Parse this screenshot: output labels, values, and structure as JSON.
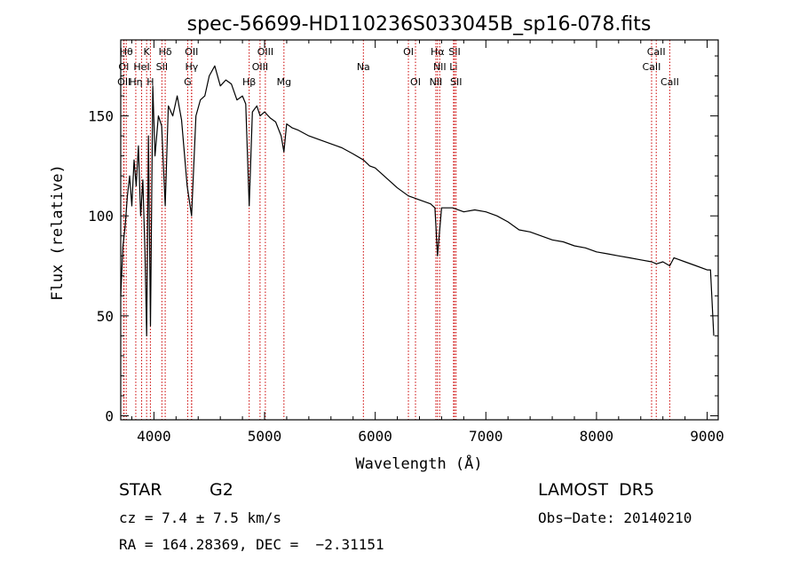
{
  "chart_data": {
    "type": "line",
    "title": "spec-56699-HD110236S033045B_sp16-078.fits",
    "xlabel": "Wavelength (Å)",
    "ylabel": "Flux (relative)",
    "xlim": [
      3700,
      9100
    ],
    "ylim": [
      -2,
      188
    ],
    "xticks": [
      4000,
      5000,
      6000,
      7000,
      8000,
      9000
    ],
    "yticks": [
      0,
      50,
      100,
      150
    ],
    "grid": false,
    "series": [
      {
        "color": "#000000",
        "x": [
          3700,
          3720,
          3740,
          3760,
          3780,
          3800,
          3820,
          3840,
          3860,
          3880,
          3900,
          3920,
          3934,
          3950,
          3969,
          3990,
          4010,
          4040,
          4070,
          4102,
          4130,
          4170,
          4210,
          4250,
          4300,
          4340,
          4380,
          4420,
          4460,
          4500,
          4550,
          4600,
          4650,
          4700,
          4750,
          4800,
          4830,
          4861,
          4890,
          4930,
          4960,
          5000,
          5050,
          5100,
          5150,
          5175,
          5200,
          5250,
          5300,
          5400,
          5500,
          5600,
          5700,
          5800,
          5893,
          5950,
          6000,
          6100,
          6200,
          6300,
          6400,
          6500,
          6540,
          6563,
          6600,
          6700,
          6800,
          6900,
          7000,
          7100,
          7200,
          7300,
          7400,
          7500,
          7600,
          7700,
          7800,
          7900,
          8000,
          8100,
          8200,
          8300,
          8400,
          8498,
          8542,
          8600,
          8662,
          8700,
          8800,
          8900,
          9000,
          9030,
          9060
        ],
        "values": [
          60,
          85,
          95,
          110,
          120,
          105,
          128,
          115,
          135,
          100,
          118,
          80,
          40,
          140,
          45,
          165,
          130,
          150,
          145,
          105,
          155,
          150,
          160,
          148,
          115,
          100,
          150,
          158,
          160,
          170,
          175,
          165,
          168,
          166,
          158,
          160,
          156,
          105,
          152,
          155,
          150,
          152,
          149,
          147,
          140,
          132,
          146,
          144,
          143,
          140,
          138,
          136,
          134,
          131,
          128,
          125,
          124,
          119,
          114,
          110,
          108,
          106,
          104,
          80,
          104,
          104,
          102,
          103,
          102,
          100,
          97,
          93,
          92,
          90,
          88,
          87,
          85,
          84,
          82,
          81,
          80,
          79,
          78,
          77,
          76,
          77,
          75,
          79,
          77,
          75,
          73,
          73,
          40
        ]
      }
    ],
    "line_markers": [
      {
        "label": "Hθ",
        "wl": 3750,
        "pos": "top"
      },
      {
        "label": "K",
        "wl": 3934,
        "pos": "top"
      },
      {
        "label": "Hδ",
        "wl": 4102,
        "pos": "top"
      },
      {
        "label": "OII",
        "wl": 4340,
        "pos": "top"
      },
      {
        "label": "OIII",
        "wl": 5007,
        "pos": "top"
      },
      {
        "label": "OI",
        "wl": 6300,
        "pos": "top"
      },
      {
        "label": "Hα",
        "wl": 6563,
        "pos": "top"
      },
      {
        "label": "SII",
        "wl": 6717,
        "pos": "top"
      },
      {
        "label": "CaII",
        "wl": 8540,
        "pos": "top"
      },
      {
        "label": "OI",
        "wl": 3727,
        "pos": "mid"
      },
      {
        "label": "HeI",
        "wl": 3889,
        "pos": "mid"
      },
      {
        "label": "SII",
        "wl": 4072,
        "pos": "mid"
      },
      {
        "label": "Hγ",
        "wl": 4341,
        "pos": "mid"
      },
      {
        "label": "OIII",
        "wl": 4959,
        "pos": "mid"
      },
      {
        "label": "Na",
        "wl": 5893,
        "pos": "mid"
      },
      {
        "label": "NII",
        "wl": 6583,
        "pos": "mid"
      },
      {
        "label": "Li",
        "wl": 6708,
        "pos": "mid"
      },
      {
        "label": "CaII",
        "wl": 8498,
        "pos": "mid"
      },
      {
        "label": "OII",
        "wl": 3730,
        "pos": "low"
      },
      {
        "label": "Hη",
        "wl": 3836,
        "pos": "low"
      },
      {
        "label": "H",
        "wl": 3968,
        "pos": "low"
      },
      {
        "label": "G",
        "wl": 4305,
        "pos": "low"
      },
      {
        "label": "Hβ",
        "wl": 4861,
        "pos": "low"
      },
      {
        "label": "Mg",
        "wl": 5175,
        "pos": "low"
      },
      {
        "label": "OI",
        "wl": 6364,
        "pos": "low"
      },
      {
        "label": "NII",
        "wl": 6548,
        "pos": "low"
      },
      {
        "label": "SII",
        "wl": 6731,
        "pos": "low"
      },
      {
        "label": "CaII",
        "wl": 8662,
        "pos": "low"
      }
    ],
    "marker_color": "#cc0000"
  },
  "info": {
    "object_class": "STAR",
    "subclass": "G2",
    "cz": "cz = 7.4 ± 7.5 km/s",
    "radec": "RA = 164.28369, DEC =  −2.31151",
    "survey": "LAMOST  DR5",
    "obs_date": "Obs−Date: 20140210"
  }
}
